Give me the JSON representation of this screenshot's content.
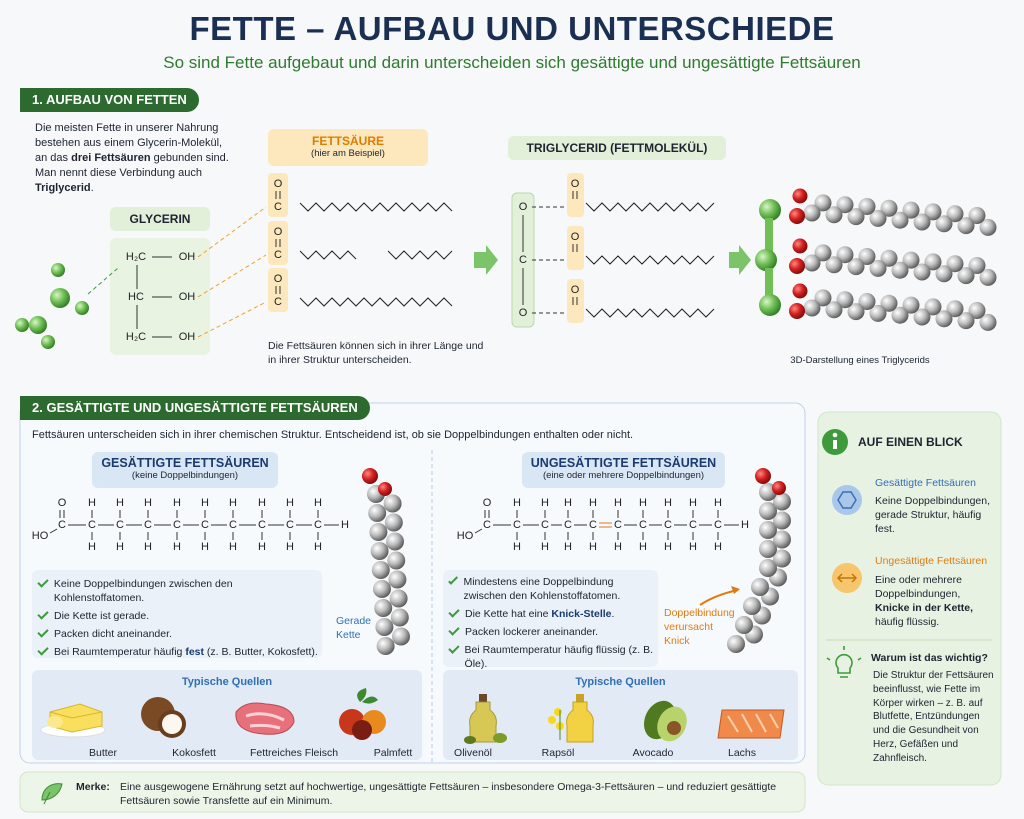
{
  "header": {
    "title": "FETTE – AUFBAU UND UNTERSCHIEDE",
    "subtitle": "So sind Fette aufgebaut und darin unterscheiden sich gesättigte und ungesättigte Fettsäuren"
  },
  "symbols": {
    "O": "O",
    "C": "C",
    "H": "H",
    "HO": "HO",
    "HC": "HC",
    "H2C": "H₂C",
    "OH": "OH"
  },
  "structure": {
    "heading": "1. AUFBAU VON FETTEN",
    "intro": [
      "Die meisten Fette in unserer Nahrung bestehen aus einem Glycerin-Molekül, an das ",
      "drei Fettsäuren",
      " gebunden sind. Man nennt diese Verbindung auch ",
      "Triglycerid",
      "."
    ],
    "glycerin": "GLYCERIN",
    "fatty_acid": {
      "label": "FETTSÄURE",
      "note": "(hier am Beispiel)",
      "caption": "Die Fettsäuren können sich in ihrer Länge und in ihrer Struktur unterscheiden."
    },
    "triglyceride": "TRIGLYCERID (FETTMOLEKÜL)",
    "model_caption": "3D-Darstellung eines Triglycerids"
  },
  "types": {
    "heading": "2. GESÄTTIGTE UND UNGESÄTTIGTE FETTSÄUREN",
    "intro": "Fettsäuren unterscheiden sich in ihrer chemischen Struktur. Entscheidend ist, ob sie Doppelbindungen enthalten oder nicht.",
    "saturated": {
      "title": "GESÄTTIGTE FETTSÄUREN",
      "note": "(keine Doppelbindungen)",
      "bullets": [
        [
          "Keine Doppelbindungen zwischen den Kohlenstoffatomen."
        ],
        [
          "Die Kette ist gerade."
        ],
        [
          "Packen dicht aneinander."
        ],
        [
          "Bei Raumtemperatur häufig ",
          "fest",
          " (z. B. Butter, Kokosfett)."
        ]
      ],
      "chain_label": "Gerade Kette",
      "sources_title": "Typische Quellen",
      "sources": [
        "Butter",
        "Kokosfett",
        "Fettreiches Fleisch",
        "Palmfett"
      ]
    },
    "unsaturated": {
      "title": "UNGESÄTTIGTE FETTSÄUREN",
      "note": "(eine oder mehrere Doppelbindungen)",
      "bullets": [
        [
          "Mindestens eine Doppelbindung zwischen den Kohlenstoffatomen."
        ],
        [
          "Die Kette hat eine ",
          "Knick-Stelle",
          "."
        ],
        [
          "Packen lockerer aneinander."
        ],
        [
          "Bei Raumtemperatur häufig flüssig (z. B. Öle)."
        ]
      ],
      "annotation": "Doppelbindung verursacht Knick",
      "sources_title": "Typische Quellen",
      "sources": [
        "Olivenöl",
        "Rapsöl",
        "Avocado",
        "Lachs"
      ]
    }
  },
  "summary": {
    "title": "AUF EINEN BLICK",
    "items": [
      {
        "title": "Gesättigte Fettsäuren",
        "text": [
          "Keine Doppelbindungen, gerade Struktur, häufig fest."
        ]
      },
      {
        "title": "Ungesättigte Fettsäuren",
        "text": [
          "Eine oder mehrere Doppelbindungen, ",
          "Knicke in der Kette,",
          " häufig flüssig."
        ]
      }
    ],
    "why": {
      "title": "Warum ist das wichtig?",
      "text": "Die Struktur der Fettsäuren beeinflusst, wie Fette im Körper wirken – z. B. auf Blutfette, Entzündungen und die Gesundheit von Herz, Gefäßen und Zahnfleisch."
    }
  },
  "footer": {
    "label": "Merke:",
    "text": "Eine ausgewogene Ernährung setzt auf hochwertige, ungesättigte Fettsäuren – insbesondere Omega-3-Fettsäuren – und reduziert gesättigte Fettsäuren sowie Transfette auf ein Minimum."
  }
}
